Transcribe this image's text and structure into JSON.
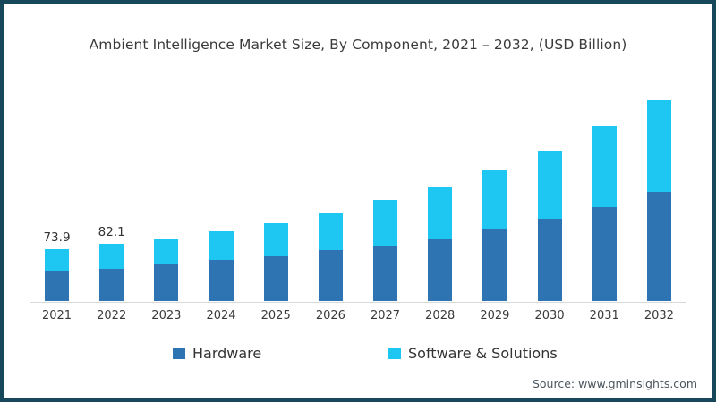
{
  "page": {
    "frame_color": "#16475a",
    "source_label": "Source: www.gminsights.com"
  },
  "chart_data": {
    "type": "bar",
    "stacked": true,
    "title": "Ambient Intelligence Market Size, By Component, 2021 – 2032, (USD Billion)",
    "xlabel": "",
    "ylabel": "",
    "grid": false,
    "y_axis_visible": false,
    "legend_position": "bottom",
    "axis_line_color": "#d9d9d9",
    "categories": [
      "2021",
      "2022",
      "2023",
      "2024",
      "2025",
      "2026",
      "2027",
      "2028",
      "2029",
      "2030",
      "2031",
      "2032"
    ],
    "series": [
      {
        "name": "Hardware",
        "color": "#2e74b2",
        "values": [
          43.5,
          46.4,
          52.0,
          58.5,
          63.7,
          72.8,
          79.3,
          89.7,
          104.0,
          118.3,
          135.2,
          156.0
        ]
      },
      {
        "name": "Software & Solutions",
        "color": "#1ec6f2",
        "values": [
          30.4,
          35.7,
          37.7,
          41.6,
          48.1,
          54.6,
          65.0,
          74.1,
          84.5,
          97.5,
          115.7,
          132.6
        ]
      }
    ],
    "totals": [
      73.9,
      82.1,
      89.7,
      100.1,
      111.8,
      127.4,
      144.3,
      163.8,
      188.5,
      215.8,
      250.9,
      288.6
    ],
    "data_labels": {
      "2021": "73.9",
      "2022": "82.1"
    }
  }
}
